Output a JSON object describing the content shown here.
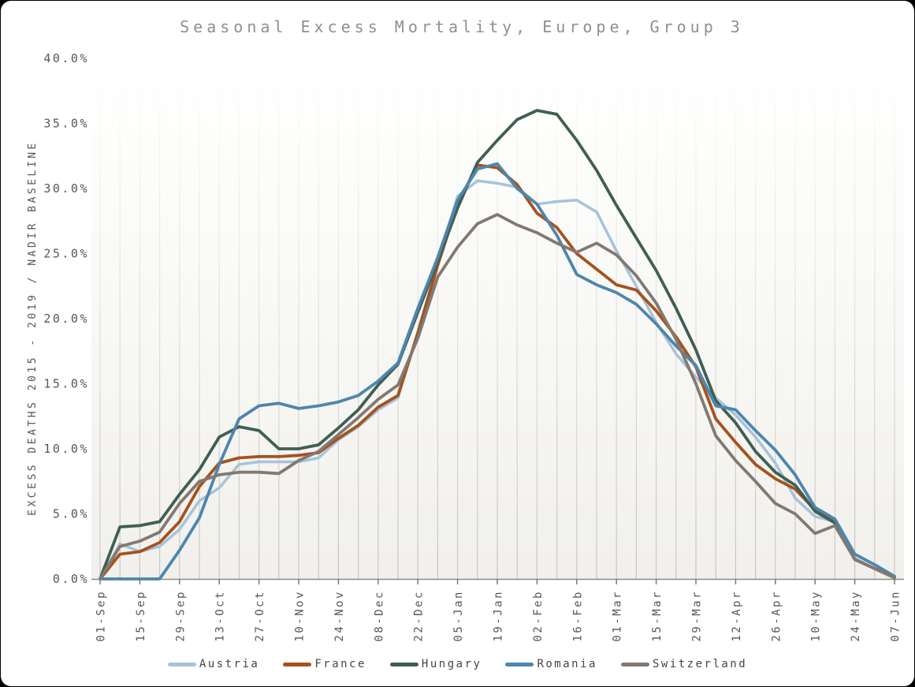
{
  "chart_data": {
    "type": "line",
    "title": "Seasonal Excess Mortality, Europe, Group 3",
    "ylabel": "EXCESS DEATHS 2015 - 2019 / NADIR BASELINE",
    "xlabel": "",
    "value_unit": "percent",
    "ylim": [
      0,
      40
    ],
    "ytick_labels": [
      "0.0%",
      "5.0%",
      "10.0%",
      "15.0%",
      "20.0%",
      "25.0%",
      "30.0%",
      "35.0%",
      "40.0%"
    ],
    "x": [
      "01-Sep",
      "08-Sep",
      "15-Sep",
      "22-Sep",
      "29-Sep",
      "06-Oct",
      "13-Oct",
      "20-Oct",
      "27-Oct",
      "03-Nov",
      "10-Nov",
      "17-Nov",
      "24-Nov",
      "01-Dec",
      "08-Dec",
      "15-Dec",
      "22-Dec",
      "29-Dec",
      "05-Jan",
      "12-Jan",
      "19-Jan",
      "26-Jan",
      "02-Feb",
      "09-Feb",
      "16-Feb",
      "23-Feb",
      "01-Mar",
      "08-Mar",
      "15-Mar",
      "22-Mar",
      "29-Mar",
      "05-Apr",
      "12-Apr",
      "19-Apr",
      "26-Apr",
      "03-May",
      "10-May",
      "17-May",
      "24-May",
      "31-May",
      "07-Jun"
    ],
    "xtick_labels_shown": [
      "01-Sep",
      "15-Sep",
      "29-Sep",
      "13-Oct",
      "27-Oct",
      "10-Nov",
      "24-Nov",
      "08-Dec",
      "22-Dec",
      "05-Jan",
      "19-Jan",
      "02-Feb",
      "16-Feb",
      "01-Mar",
      "15-Mar",
      "29-Mar",
      "12-Apr",
      "26-Apr",
      "10-May",
      "24-May",
      "07-Jun"
    ],
    "grid": "vertical weekly gridlines, faded toward plot top",
    "legend_position": "bottom center",
    "series": [
      {
        "name": "Austria",
        "color": "#a6c3da",
        "values": [
          0.0,
          2.7,
          2.1,
          2.5,
          3.8,
          6.0,
          7.0,
          8.8,
          9.0,
          9.0,
          9.0,
          9.3,
          10.7,
          11.7,
          13.0,
          13.9,
          19.0,
          24.3,
          29.4,
          30.6,
          30.4,
          30.1,
          28.8,
          29.0,
          29.1,
          28.2,
          25.2,
          22.5,
          19.7,
          17.3,
          15.5,
          13.9,
          12.6,
          10.9,
          8.9,
          6.2,
          4.8,
          4.4,
          1.6,
          0.8,
          0.1
        ]
      },
      {
        "name": "France",
        "color": "#a5521d",
        "values": [
          0.0,
          1.9,
          2.1,
          2.8,
          4.4,
          7.1,
          8.9,
          9.3,
          9.4,
          9.4,
          9.5,
          9.7,
          10.8,
          11.8,
          13.2,
          14.1,
          18.9,
          24.1,
          28.8,
          31.8,
          31.6,
          30.3,
          28.1,
          27.0,
          25.0,
          23.8,
          22.6,
          22.2,
          20.6,
          18.6,
          16.3,
          12.3,
          10.5,
          8.8,
          7.7,
          6.9,
          5.3,
          4.5,
          1.5,
          0.8,
          0.1
        ]
      },
      {
        "name": "Hungary",
        "color": "#3f5f52",
        "values": [
          0.0,
          4.0,
          4.1,
          4.4,
          6.5,
          8.4,
          10.9,
          11.7,
          11.4,
          10.0,
          10.0,
          10.3,
          11.6,
          13.0,
          14.9,
          16.5,
          20.5,
          24.4,
          28.5,
          32.0,
          33.7,
          35.3,
          36.0,
          35.7,
          33.7,
          31.4,
          28.7,
          26.2,
          23.7,
          20.8,
          17.6,
          13.7,
          12.0,
          9.8,
          8.2,
          7.2,
          5.2,
          4.3,
          1.5,
          0.8,
          0.1
        ]
      },
      {
        "name": "Romania",
        "color": "#4e86ad",
        "values": [
          0.0,
          0.0,
          0.0,
          0.0,
          2.2,
          4.7,
          8.8,
          12.3,
          13.3,
          13.5,
          13.1,
          13.3,
          13.6,
          14.1,
          15.2,
          16.6,
          20.8,
          24.7,
          29.1,
          31.5,
          31.9,
          30.0,
          28.8,
          26.4,
          23.4,
          22.6,
          22.0,
          21.1,
          19.6,
          17.9,
          16.4,
          13.3,
          13.0,
          11.4,
          9.9,
          8.0,
          5.5,
          4.6,
          1.9,
          1.1,
          0.2
        ]
      },
      {
        "name": "Switzerland",
        "color": "#827971",
        "values": [
          0.0,
          2.5,
          2.9,
          3.6,
          5.8,
          7.5,
          8.0,
          8.2,
          8.2,
          8.1,
          9.1,
          9.8,
          11.1,
          12.4,
          13.8,
          14.9,
          18.5,
          23.2,
          25.5,
          27.3,
          28.0,
          27.2,
          26.6,
          25.8,
          25.1,
          25.8,
          24.9,
          23.3,
          21.2,
          18.4,
          15.0,
          11.0,
          9.1,
          7.5,
          5.8,
          5.0,
          3.5,
          4.1,
          1.5,
          0.8,
          0.1
        ]
      }
    ]
  },
  "colors": {
    "card_background": "#ffffff",
    "frame_background": "#000000",
    "plot_gradient_top": "#ffffff",
    "plot_gradient_bottom": "#f1f0ec",
    "gridline": "#c6c3be",
    "axis_line": "#8f8b85",
    "title_text": "#8f8f8f",
    "tick_text": "#5a5752",
    "legend_text": "#454545"
  }
}
